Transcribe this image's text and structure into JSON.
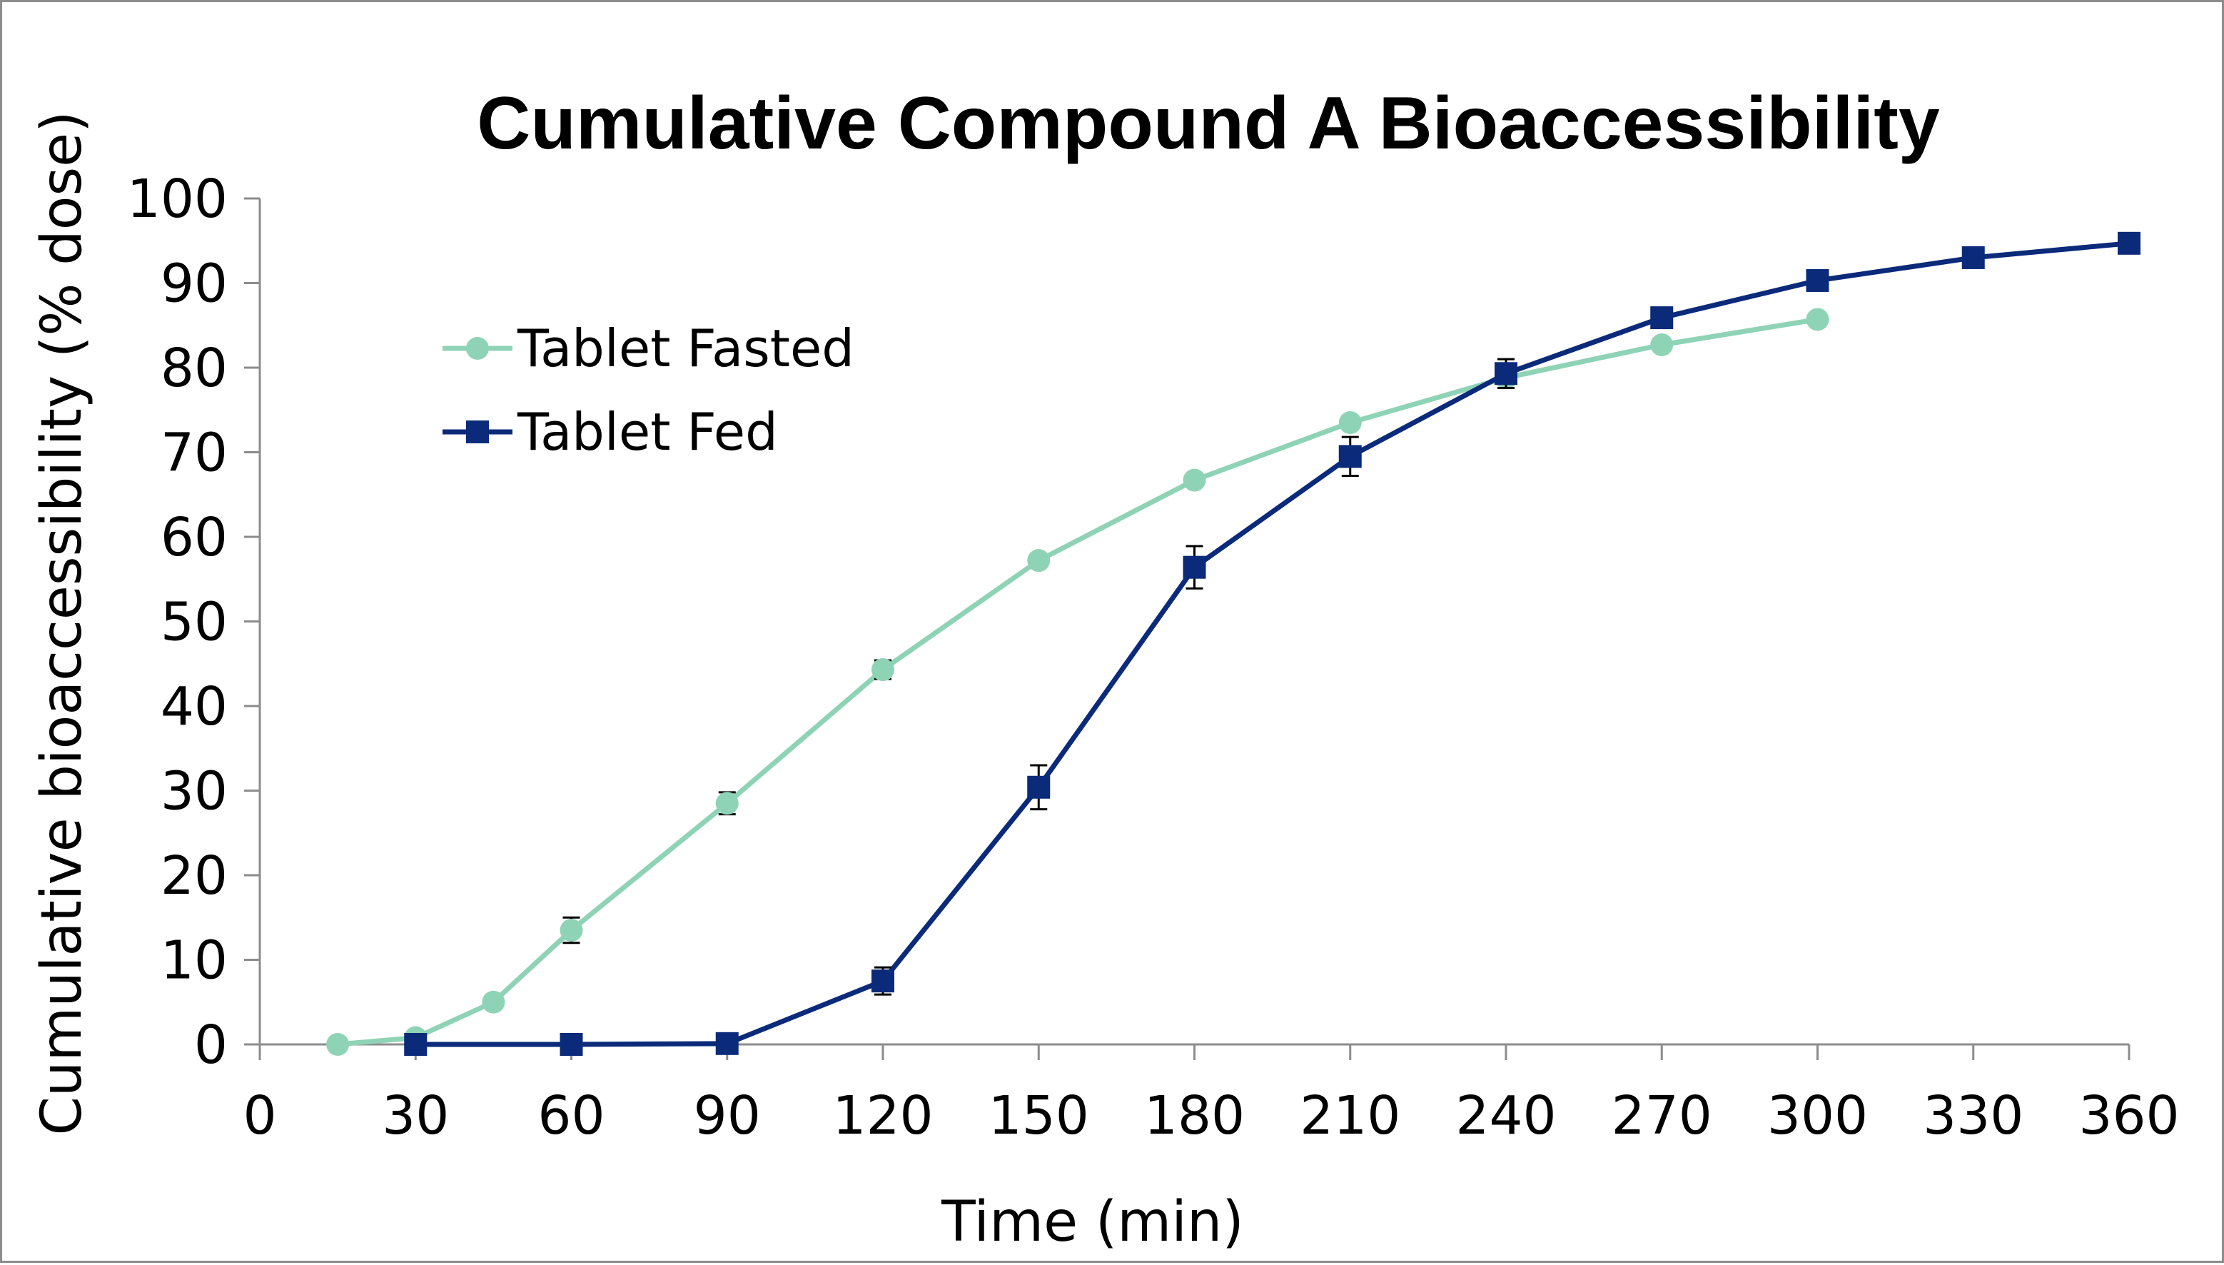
{
  "chart_data": {
    "type": "line",
    "title": "Cumulative Compound A Bioaccessibility",
    "xlabel": "Time (min)",
    "ylabel": "Cumulative bioaccessibility (% dose)",
    "xlim": [
      0,
      360
    ],
    "ylim": [
      0,
      100
    ],
    "x_ticks": [
      "0",
      "30",
      "60",
      "90",
      "120",
      "150",
      "180",
      "210",
      "240",
      "270",
      "300",
      "330",
      "360"
    ],
    "y_ticks": [
      "0",
      "10",
      "20",
      "30",
      "40",
      "50",
      "60",
      "70",
      "80",
      "90",
      "100"
    ],
    "grid": false,
    "legend_position": "top-left",
    "series": [
      {
        "name": "Tablet Fasted",
        "color": "#8fd3b6",
        "marker": "circle",
        "x": [
          15,
          30,
          45,
          60,
          90,
          120,
          150,
          180,
          210,
          240,
          270,
          300
        ],
        "y": [
          0,
          0.8,
          5,
          13.5,
          28.5,
          44.3,
          57.2,
          66.7,
          73.5,
          78.8,
          82.7,
          85.7
        ],
        "error": [
          0,
          0,
          0,
          1.5,
          1.3,
          1.1,
          0,
          0,
          0,
          0,
          0,
          0
        ]
      },
      {
        "name": "Tablet Fed",
        "color": "#0b2a7a",
        "marker": "square",
        "x": [
          30,
          60,
          90,
          120,
          150,
          180,
          210,
          240,
          270,
          300,
          330,
          360
        ],
        "y": [
          0,
          0,
          0.1,
          7.5,
          30.4,
          56.4,
          69.5,
          79.3,
          85.9,
          90.3,
          93.0,
          94.7
        ],
        "error": [
          0,
          0,
          0,
          1.6,
          2.6,
          2.5,
          2.3,
          1.7,
          0,
          0,
          0,
          0
        ]
      }
    ]
  }
}
